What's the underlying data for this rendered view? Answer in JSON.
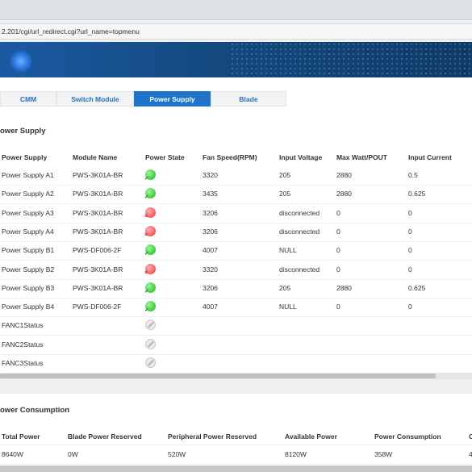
{
  "browser": {
    "url": "2.201/cgi/url_redirect.cgi?url_name=topmenu"
  },
  "tabs": [
    {
      "label": "CMM",
      "active": false
    },
    {
      "label": "Switch Module",
      "active": false
    },
    {
      "label": "Power Supply",
      "active": true
    },
    {
      "label": "Blade",
      "active": false
    }
  ],
  "power_supply": {
    "title": "ower Supply",
    "columns": [
      "Power Supply",
      "Module Name",
      "Power State",
      "Fan Speed(RPM)",
      "Input Voltage",
      "Max Watt/POUT",
      "Input Current"
    ],
    "rows": [
      {
        "name": "Power Supply A1",
        "module": "PWS-3K01A-BR",
        "state": "on",
        "fan": "3320",
        "voltage": "205",
        "max_watt": "2880",
        "current": "0.5"
      },
      {
        "name": "Power Supply A2",
        "module": "PWS-3K01A-BR",
        "state": "on",
        "fan": "3435",
        "voltage": "205",
        "max_watt": "2880",
        "current": "0.625"
      },
      {
        "name": "Power Supply A3",
        "module": "PWS-3K01A-BR",
        "state": "off",
        "fan": "3206",
        "voltage": "disconnected",
        "max_watt": "0",
        "current": "0"
      },
      {
        "name": "Power Supply A4",
        "module": "PWS-3K01A-BR",
        "state": "off",
        "fan": "3206",
        "voltage": "disconnected",
        "max_watt": "0",
        "current": "0"
      },
      {
        "name": "Power Supply B1",
        "module": "PWS-DF006-2F",
        "state": "on",
        "fan": "4007",
        "voltage": "NULL",
        "max_watt": "0",
        "current": "0"
      },
      {
        "name": "Power Supply B2",
        "module": "PWS-3K01A-BR",
        "state": "off",
        "fan": "3320",
        "voltage": "disconnected",
        "max_watt": "0",
        "current": "0"
      },
      {
        "name": "Power Supply B3",
        "module": "PWS-3K01A-BR",
        "state": "on",
        "fan": "3206",
        "voltage": "205",
        "max_watt": "2880",
        "current": "0.625"
      },
      {
        "name": "Power Supply B4",
        "module": "PWS-DF006-2F",
        "state": "on",
        "fan": "4007",
        "voltage": "NULL",
        "max_watt": "0",
        "current": "0"
      },
      {
        "name": "FANC1Status",
        "module": "",
        "state": "na",
        "fan": "",
        "voltage": "",
        "max_watt": "",
        "current": ""
      },
      {
        "name": "FANC2Status",
        "module": "",
        "state": "na",
        "fan": "",
        "voltage": "",
        "max_watt": "",
        "current": ""
      },
      {
        "name": "FANC3Status",
        "module": "",
        "state": "na",
        "fan": "",
        "voltage": "",
        "max_watt": "",
        "current": ""
      }
    ]
  },
  "power_consumption": {
    "title": "ower Consumption",
    "columns": [
      "Total Power",
      "Blade Power Reserved",
      "Peripheral Power Reserved",
      "Available Power",
      "Power Consumption",
      "C"
    ],
    "values": [
      "8640W",
      "0W",
      "520W",
      "8120W",
      "358W",
      "4"
    ]
  },
  "icons": {
    "on": "power-on-icon",
    "off": "power-off-icon",
    "na": "not-available-icon"
  },
  "colors": {
    "active_tab": "#1f74c9",
    "tab_text": "#2e6fb8",
    "ok": "#3ecb3a",
    "error": "#f25a5a",
    "banner": "#14497f"
  }
}
